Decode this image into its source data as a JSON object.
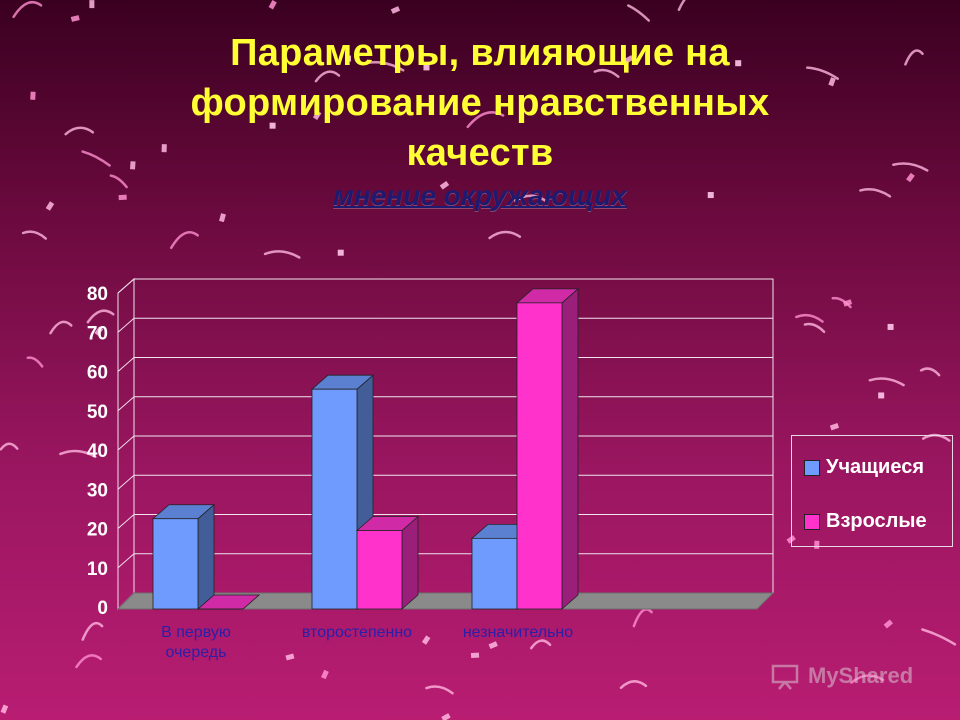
{
  "slide": {
    "title_lines": [
      "Параметры, влияющие на",
      "формирование нравственных",
      "качеств"
    ],
    "subtitle": "мнение окружающих"
  },
  "chart_data": {
    "type": "bar",
    "categories": [
      "В первую очередь",
      "второстепенно",
      "незначительно"
    ],
    "category_lines": [
      [
        "В первую",
        "очередь"
      ],
      [
        "второстепенно"
      ],
      [
        "незначительно"
      ]
    ],
    "series": [
      {
        "name": "Учащиеся",
        "values": [
          23,
          56,
          18
        ],
        "color": "#6f9bff"
      },
      {
        "name": "Взрослые",
        "values": [
          0,
          20,
          78
        ],
        "color": "#ff33cc"
      }
    ],
    "ylim": [
      0,
      80
    ],
    "yticks": [
      "0",
      "10",
      "20",
      "30",
      "40",
      "50",
      "60",
      "70",
      "80"
    ],
    "grid": true,
    "legend_position": "right",
    "title": "",
    "xlabel": "",
    "ylabel": ""
  },
  "watermark": {
    "text": "MyShared",
    "icon": "presentation-icon"
  },
  "colors": {
    "title": "#ffff33",
    "subtitle": "#1e1a70",
    "axis_label": "#2a20a8"
  }
}
